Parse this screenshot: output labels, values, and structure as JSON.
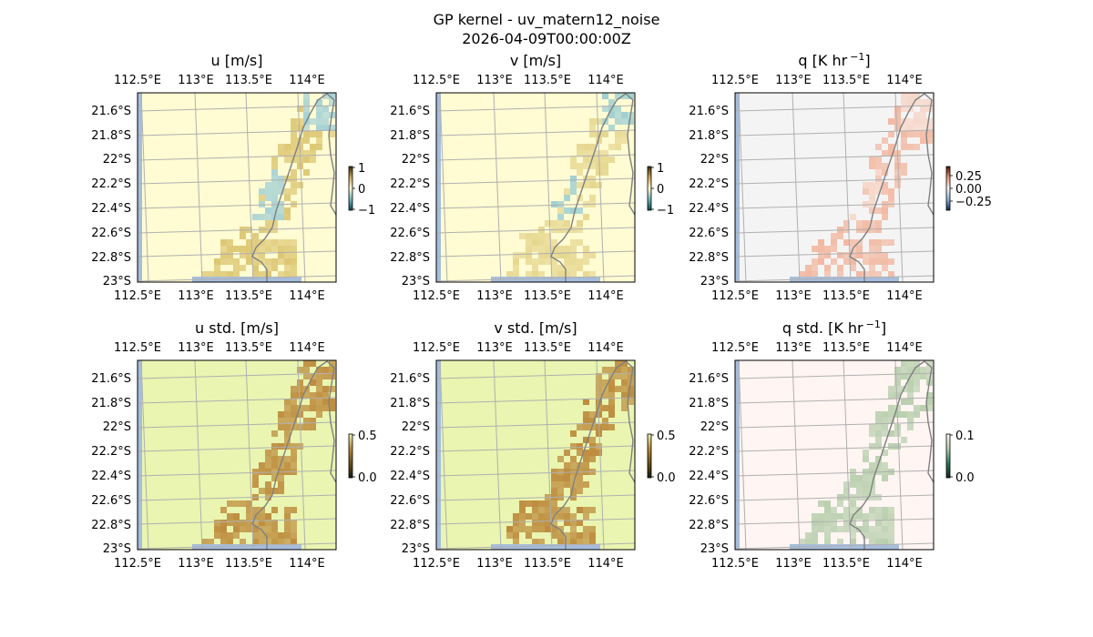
{
  "figure": {
    "title_line1": "GP kernel - uv_matern12_noise",
    "title_line2": "2026-04-09T00:00:00Z"
  },
  "chart_data": [
    {
      "type": "heatmap",
      "title": "u [m/s]",
      "title_sup": "",
      "title_tail": "",
      "xlim": [
        112.5,
        114.1
      ],
      "ylim": [
        -23.0,
        -21.5
      ],
      "x_ticks": [
        "112.5°E",
        "113°E",
        "113.5°E",
        "114°E"
      ],
      "y_ticks": [
        "21.6°S",
        "21.8°S",
        "22°S",
        "22.2°S",
        "22.4°S",
        "22.6°S",
        "22.8°S",
        "23°S"
      ],
      "background_color": "#fffbd2",
      "colorbar": {
        "ticks": [
          "1",
          "0",
          "−1"
        ],
        "range": [
          -1,
          1
        ],
        "colors": [
          "#0b4a56",
          "#6fb7ba",
          "#fffbd2",
          "#c9a85a",
          "#3a2a0a"
        ]
      },
      "field": "signed",
      "positive_color": "#ddc774",
      "negative_color": "#a8d2d4"
    },
    {
      "type": "heatmap",
      "title": "v [m/s]",
      "title_sup": "",
      "title_tail": "",
      "xlim": [
        112.5,
        114.1
      ],
      "ylim": [
        -23.0,
        -21.5
      ],
      "x_ticks": [
        "112.5°E",
        "113°E",
        "113.5°E",
        "114°E"
      ],
      "y_ticks": [
        "21.6°S",
        "21.8°S",
        "22°S",
        "22.2°S",
        "22.4°S",
        "22.6°S",
        "22.8°S",
        "23°S"
      ],
      "background_color": "#fffbd2",
      "colorbar": {
        "ticks": [
          "1",
          "0",
          "−1"
        ],
        "range": [
          -1,
          1
        ],
        "colors": [
          "#0b4a56",
          "#6fb7ba",
          "#fffbd2",
          "#c9a85a",
          "#3a2a0a"
        ]
      },
      "field": "signed",
      "positive_color": "#e6d790",
      "negative_color": "#9fcfd1"
    },
    {
      "type": "heatmap",
      "title": "q [K hr",
      "title_sup": "−1",
      "title_tail": "]",
      "xlim": [
        112.5,
        114.1
      ],
      "ylim": [
        -23.0,
        -21.5
      ],
      "x_ticks": [
        "112.5°E",
        "113°E",
        "113.5°E",
        "114°E"
      ],
      "y_ticks": [
        "21.6°S",
        "21.8°S",
        "22°S",
        "22.2°S",
        "22.4°S",
        "22.6°S",
        "22.8°S",
        "23°S"
      ],
      "background_color": "#f4f4f4",
      "colorbar": {
        "ticks": [
          "0.25",
          "0.00",
          "−0.25"
        ],
        "range": [
          -0.35,
          0.35
        ],
        "colors": [
          "#0a2a55",
          "#8ab4d6",
          "#f4f4f4",
          "#e8957a",
          "#5a0a0a"
        ]
      },
      "field": "signed",
      "positive_color": "#f2b9a2",
      "negative_color": "#f6d6c8"
    },
    {
      "type": "heatmap",
      "title": "u std. [m/s]",
      "title_sup": "",
      "title_tail": "",
      "xlim": [
        112.5,
        114.1
      ],
      "ylim": [
        -23.0,
        -21.5
      ],
      "x_ticks": [
        "112.5°E",
        "113°E",
        "113.5°E",
        "114°E"
      ],
      "y_ticks": [
        "21.6°S",
        "21.8°S",
        "22°S",
        "22.2°S",
        "22.4°S",
        "22.6°S",
        "22.8°S",
        "23°S"
      ],
      "background_color": "#e9f5b0",
      "colorbar": {
        "ticks": [
          "0.5",
          "0.0"
        ],
        "range": [
          0,
          0.5
        ],
        "colors": [
          "#1a1a10",
          "#6b5216",
          "#b88a3a",
          "#e9f5b0"
        ]
      },
      "field": "std",
      "positive_color": "#bd8c3e",
      "negative_color": "#bd8c3e"
    },
    {
      "type": "heatmap",
      "title": "v std. [m/s]",
      "title_sup": "",
      "title_tail": "",
      "xlim": [
        112.5,
        114.1
      ],
      "ylim": [
        -23.0,
        -21.5
      ],
      "x_ticks": [
        "112.5°E",
        "113°E",
        "113.5°E",
        "114°E"
      ],
      "y_ticks": [
        "21.6°S",
        "21.8°S",
        "22°S",
        "22.2°S",
        "22.4°S",
        "22.6°S",
        "22.8°S",
        "23°S"
      ],
      "background_color": "#e9f5b0",
      "colorbar": {
        "ticks": [
          "0.5",
          "0.0"
        ],
        "range": [
          0,
          0.5
        ],
        "colors": [
          "#1a1a10",
          "#6b5216",
          "#b88a3a",
          "#e9f5b0"
        ]
      },
      "field": "std",
      "positive_color": "#bd8c3e",
      "negative_color": "#bd8c3e"
    },
    {
      "type": "heatmap",
      "title": "q std. [K hr",
      "title_sup": "−1",
      "title_tail": "]",
      "xlim": [
        112.5,
        114.1
      ],
      "ylim": [
        -23.0,
        -21.5
      ],
      "x_ticks": [
        "112.5°E",
        "113°E",
        "113.5°E",
        "114°E"
      ],
      "y_ticks": [
        "21.6°S",
        "21.8°S",
        "22°S",
        "22.2°S",
        "22.4°S",
        "22.6°S",
        "22.8°S",
        "23°S"
      ],
      "background_color": "#fff5f2",
      "colorbar": {
        "ticks": [
          "0.1",
          "0.0"
        ],
        "range": [
          0,
          0.12
        ],
        "colors": [
          "#0a2a1a",
          "#2a7a5a",
          "#b8d0b0",
          "#fff5f2"
        ]
      },
      "field": "std",
      "positive_color": "#b9cfae",
      "negative_color": "#b9cfae"
    }
  ]
}
